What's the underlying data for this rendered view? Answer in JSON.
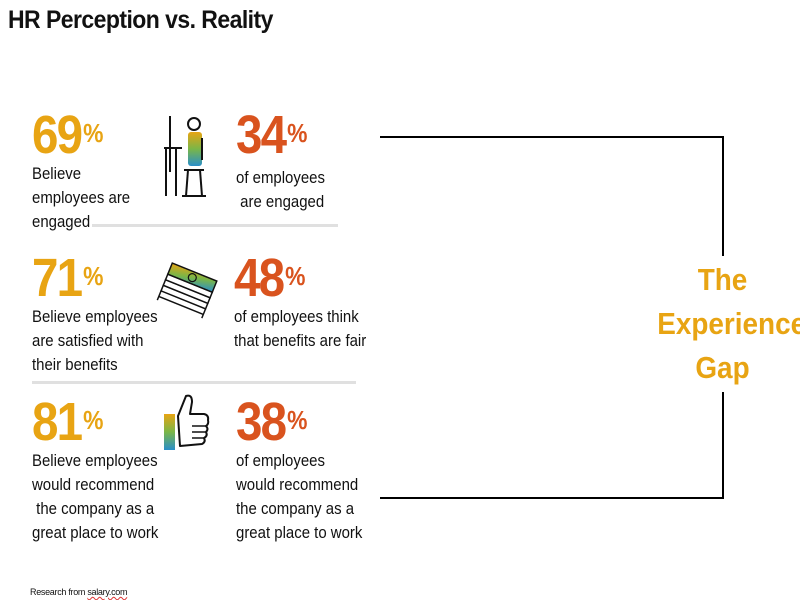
{
  "title": "HR Perception vs. Reality",
  "rows": [
    {
      "hr": {
        "value": "69",
        "unit": "%",
        "text": "Believe\nemployees are\nengaged"
      },
      "icon": "desk-worker-icon",
      "emp": {
        "value": "34",
        "unit": "%",
        "text": "of employees\n are engaged"
      }
    },
    {
      "hr": {
        "value": "71",
        "unit": "%",
        "text": "Believe employees\nare satisfied with\ntheir benefits"
      },
      "icon": "money-stack-icon",
      "emp": {
        "value": "48",
        "unit": "%",
        "text": "of employees think\nthat benefits are fair"
      }
    },
    {
      "hr": {
        "value": "81",
        "unit": "%",
        "text": "Believe employees\nwould recommend\n the company as a\ngreat place to work"
      },
      "icon": "thumbs-up-icon",
      "emp": {
        "value": "38",
        "unit": "%",
        "text": "of employees\nwould recommend\nthe company as a\ngreat place to work"
      }
    }
  ],
  "gap_label": {
    "line1": "The",
    "line2": "Experience",
    "line3": "Gap"
  },
  "footer": {
    "prefix": "Research from ",
    "source": "salary.com"
  },
  "colors": {
    "hr": "#e8a413",
    "employees": "#d9531e",
    "gap": "#e8a413",
    "divider": "#e0e0e0"
  }
}
